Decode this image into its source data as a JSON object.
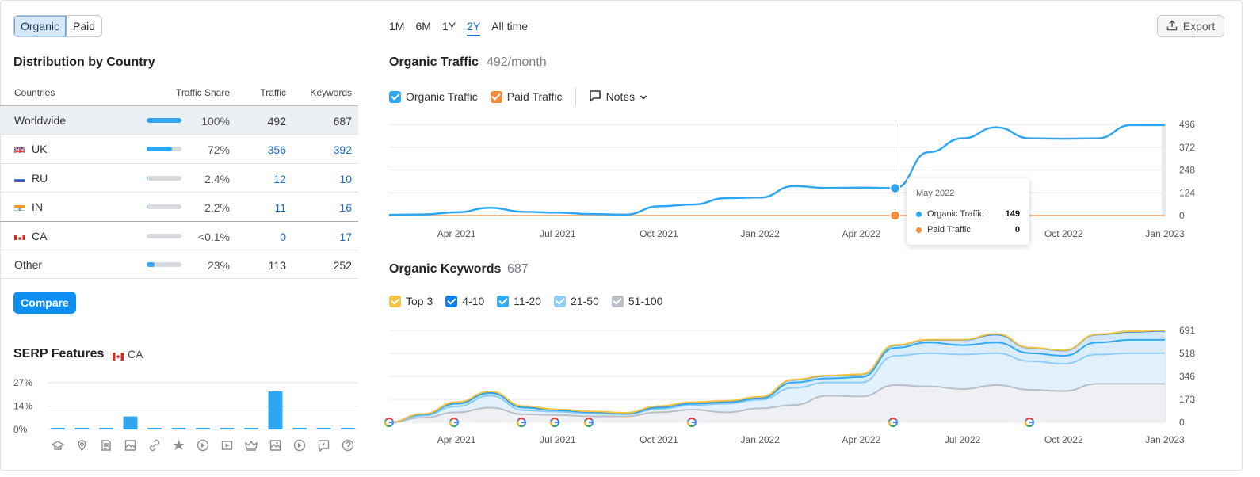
{
  "toggle": {
    "organic": "Organic",
    "paid": "Paid"
  },
  "distribution": {
    "title": "Distribution by Country",
    "headers": {
      "countries": "Countries",
      "share": "Traffic Share",
      "traffic": "Traffic",
      "keywords": "Keywords"
    },
    "rows": [
      {
        "name": "Worldwide",
        "share": "100%",
        "share_value": 1.0,
        "traffic": "492",
        "keywords": "687",
        "flag": ""
      },
      {
        "name": "UK",
        "share": "72%",
        "share_value": 0.72,
        "traffic": "356",
        "keywords": "392",
        "flag": "uk-flag-icon"
      },
      {
        "name": "RU",
        "share": "2.4%",
        "share_value": 0.024,
        "traffic": "12",
        "keywords": "10",
        "flag": "ru-flag-icon"
      },
      {
        "name": "IN",
        "share": "2.2%",
        "share_value": 0.022,
        "traffic": "11",
        "keywords": "16",
        "flag": "in-flag-icon"
      },
      {
        "name": "CA",
        "share": "<0.1%",
        "share_value": 0.0,
        "traffic": "0",
        "keywords": "17",
        "flag": "ca-flag-icon"
      },
      {
        "name": "Other",
        "share": "23%",
        "share_value": 0.23,
        "traffic": "113",
        "keywords": "252",
        "flag": ""
      }
    ],
    "compare_label": "Compare"
  },
  "serp": {
    "title": "SERP Features",
    "country": "CA",
    "y_ticks": [
      "27%",
      "14%",
      "0%"
    ],
    "values": [
      0.5,
      0.5,
      0.5,
      7.5,
      0.5,
      0.5,
      0.5,
      0.5,
      0.5,
      22,
      0.5,
      0.5,
      0.5
    ],
    "icons": [
      "graduation-cap-icon",
      "map-pin-icon",
      "document-icon",
      "image-pack-icon",
      "link-icon",
      "star-icon",
      "video-play-icon",
      "video-icon",
      "crown-icon",
      "image-icon",
      "play-circle-icon",
      "review-icon",
      "question-icon"
    ]
  },
  "periods": [
    "1M",
    "6M",
    "1Y",
    "2Y",
    "All time"
  ],
  "active_period": "2Y",
  "export_label": "Export",
  "organic_traffic": {
    "title": "Organic Traffic",
    "value": "492/month",
    "legend": {
      "organic": "Organic Traffic",
      "paid": "Paid Traffic",
      "notes": "Notes"
    },
    "y_ticks": [
      "496",
      "372",
      "248",
      "124",
      "0"
    ],
    "x_ticks": [
      "Apr 2021",
      "Jul 2021",
      "Oct 2021",
      "Jan 2022",
      "Apr 2022",
      "Jul 2022",
      "Oct 2022",
      "Jan 2023"
    ]
  },
  "tooltip": {
    "date": "May 2022",
    "organic_label": "Organic Traffic",
    "organic_value": "149",
    "paid_label": "Paid Traffic",
    "paid_value": "0"
  },
  "organic_keywords": {
    "title": "Organic Keywords",
    "value": "687",
    "legend": [
      "Top 3",
      "4-10",
      "11-20",
      "21-50",
      "51-100"
    ],
    "y_ticks": [
      "691",
      "518",
      "346",
      "173",
      "0"
    ],
    "x_ticks": [
      "Apr 2021",
      "Jul 2021",
      "Oct 2021",
      "Jan 2022",
      "Apr 2022",
      "Jul 2022",
      "Oct 2022",
      "Jan 2023"
    ]
  },
  "colors": {
    "organic": "#2fa6f1",
    "paid": "#f58c3c",
    "top3": "#f6c445",
    "r4_10": "#0f7fe8",
    "r11_20": "#33aaf0",
    "r21_50": "#8ecdf6",
    "r51_100": "#b9bfc6",
    "accent": "#0d8ef0"
  },
  "chart_data": [
    {
      "type": "line",
      "title": "Organic Traffic",
      "x": [
        "Feb 2021",
        "Mar 2021",
        "Apr 2021",
        "May 2021",
        "Jun 2021",
        "Jul 2021",
        "Aug 2021",
        "Sep 2021",
        "Oct 2021",
        "Nov 2021",
        "Dec 2021",
        "Jan 2022",
        "Feb 2022",
        "Mar 2022",
        "Apr 2022",
        "May 2022",
        "Jun 2022",
        "Jul 2022",
        "Aug 2022",
        "Sep 2022",
        "Oct 2022",
        "Nov 2022",
        "Dec 2022",
        "Jan 2023"
      ],
      "series": [
        {
          "name": "Organic Traffic",
          "values": [
            4,
            6,
            18,
            42,
            20,
            16,
            8,
            5,
            50,
            60,
            95,
            98,
            160,
            150,
            152,
            149,
            345,
            420,
            480,
            420,
            418,
            420,
            492,
            492
          ]
        },
        {
          "name": "Paid Traffic",
          "values": [
            0,
            0,
            0,
            0,
            0,
            0,
            0,
            0,
            0,
            0,
            0,
            0,
            0,
            0,
            0,
            0,
            0,
            0,
            0,
            0,
            0,
            0,
            0,
            0
          ]
        }
      ],
      "ylim": [
        0,
        496
      ]
    },
    {
      "type": "area",
      "title": "Organic Keywords",
      "x": [
        "Feb 2021",
        "Mar 2021",
        "Apr 2021",
        "May 2021",
        "Jun 2021",
        "Jul 2021",
        "Aug 2021",
        "Sep 2021",
        "Oct 2021",
        "Nov 2021",
        "Dec 2021",
        "Jan 2022",
        "Feb 2022",
        "Mar 2022",
        "Apr 2022",
        "May 2022",
        "Jun 2022",
        "Jul 2022",
        "Aug 2022",
        "Sep 2022",
        "Oct 2022",
        "Nov 2022",
        "Dec 2022",
        "Jan 2023"
      ],
      "series": [
        {
          "name": "51-100",
          "values": [
            0,
            35,
            75,
            110,
            60,
            55,
            45,
            45,
            75,
            95,
            75,
            105,
            130,
            200,
            195,
            280,
            270,
            250,
            280,
            245,
            235,
            290,
            290,
            290
          ]
        },
        {
          "name": "21-50",
          "values": [
            0,
            50,
            120,
            200,
            90,
            80,
            65,
            60,
            100,
            130,
            140,
            170,
            260,
            300,
            300,
            500,
            520,
            510,
            520,
            460,
            440,
            510,
            520,
            520
          ]
        },
        {
          "name": "11-20",
          "values": [
            0,
            58,
            140,
            220,
            110,
            90,
            75,
            65,
            110,
            140,
            150,
            180,
            300,
            330,
            340,
            560,
            600,
            580,
            600,
            520,
            500,
            600,
            620,
            620
          ]
        },
        {
          "name": "4-10",
          "values": [
            0,
            62,
            150,
            230,
            120,
            95,
            80,
            70,
            120,
            150,
            160,
            190,
            320,
            350,
            360,
            580,
            620,
            620,
            660,
            560,
            540,
            660,
            680,
            687
          ]
        },
        {
          "name": "Top 3",
          "values": [
            0,
            63,
            152,
            232,
            122,
            97,
            82,
            72,
            122,
            152,
            162,
            192,
            322,
            352,
            362,
            582,
            622,
            622,
            665,
            562,
            542,
            662,
            684,
            691
          ]
        }
      ],
      "ylim": [
        0,
        691
      ]
    }
  ]
}
